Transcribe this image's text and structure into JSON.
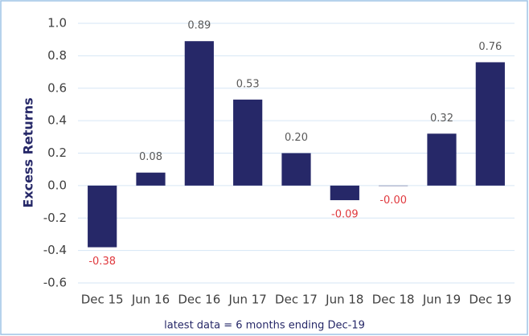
{
  "chart_data": {
    "type": "bar",
    "y_label": "Excess Returns",
    "note": "latest data = 6 months ending Dec-19",
    "categories": [
      "Dec 15",
      "Jun 16",
      "Dec 16",
      "Jun 17",
      "Dec 17",
      "Jun 18",
      "Dec 18",
      "Jun 19",
      "Dec 19"
    ],
    "values": [
      -0.38,
      0.08,
      0.89,
      0.53,
      0.2,
      -0.09,
      -0.002,
      0.32,
      0.76
    ],
    "value_labels": [
      "-0.38",
      "0.08",
      "0.89",
      "0.53",
      "0.20",
      "-0.09",
      "-0.00",
      "0.32",
      "0.76"
    ],
    "color": "#262868",
    "positive_label_color": "#595959",
    "negative_label_color": "#e0393e",
    "ylim": [
      -0.6,
      1.0
    ],
    "yticks": [
      {
        "value": 1.0,
        "label": "1.0"
      },
      0.8,
      0.6,
      0.4,
      0.2,
      {
        "value": 0,
        "label": "0.0"
      },
      -0.2,
      -0.4,
      -0.6
    ],
    "grid": true
  }
}
